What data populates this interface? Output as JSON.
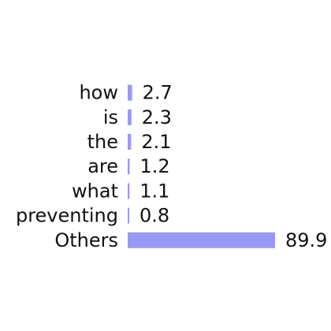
{
  "chart_data": {
    "type": "bar",
    "orientation": "horizontal",
    "categories": [
      "how",
      "is",
      "the",
      "are",
      "what",
      "preventing",
      "Others"
    ],
    "values": [
      2.7,
      2.3,
      2.1,
      1.2,
      1.1,
      0.8,
      89.9
    ],
    "value_labels": [
      "2.7",
      "2.3",
      "2.1",
      "1.2",
      "1.1",
      "0.8",
      "89.9"
    ],
    "bar_color": "#9999f5",
    "title": "",
    "xlabel": "",
    "ylabel": "",
    "xlim": [
      0,
      89.9
    ],
    "grid": false,
    "legend": "none"
  }
}
